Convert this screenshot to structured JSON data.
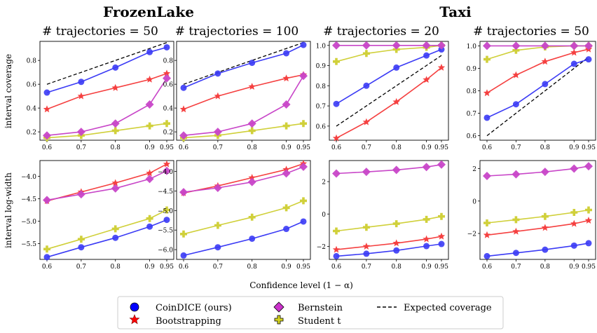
{
  "figure": {
    "group_titles": [
      "FrozenLake",
      "Taxi"
    ],
    "panel_titles": [
      "# trajectories = 50",
      "# trajectories = 100",
      "# trajectories = 20",
      "# trajectories = 50"
    ],
    "row_ylabels": [
      "interval coverage",
      "interval log-width"
    ],
    "xlabel": "Confidence level (1 − α)"
  },
  "legend": {
    "entries": [
      {
        "label": "CoinDICE (ours)",
        "marker": "circle",
        "color": "#0000ff"
      },
      {
        "label": "Bootstrapping",
        "marker": "star",
        "color": "#ff0000"
      },
      {
        "label": "Bernstein",
        "marker": "diamond",
        "color": "#cc33cc"
      },
      {
        "label": "Student t",
        "marker": "plus",
        "color": "#d4d420"
      },
      {
        "label": "Expected coverage",
        "marker": "dashed-line",
        "color": "#000000"
      }
    ]
  },
  "chart_data": [
    {
      "type": "line",
      "group": "FrozenLake",
      "title": "# trajectories = 50",
      "ylabel": "interval coverage",
      "xlabel": "",
      "x": [
        0.6,
        0.7,
        0.8,
        0.9,
        0.95
      ],
      "x_ticks": [
        "0.6",
        "0.7",
        "0.8",
        "0.9",
        "0.95"
      ],
      "ylim": [
        0.13,
        0.96
      ],
      "y_ticks": [
        0.2,
        0.4,
        0.6,
        0.8
      ],
      "y_tick_labels": [
        "0.2",
        "0.4",
        "0.6",
        "0.8"
      ],
      "series": [
        {
          "name": "CoinDICE (ours)",
          "values": [
            0.53,
            0.62,
            0.74,
            0.87,
            0.91
          ]
        },
        {
          "name": "Bootstrapping",
          "values": [
            0.39,
            0.5,
            0.57,
            0.64,
            0.69
          ]
        },
        {
          "name": "Bernstein",
          "values": [
            0.17,
            0.2,
            0.27,
            0.43,
            0.65
          ]
        },
        {
          "name": "Student t",
          "values": [
            0.15,
            0.17,
            0.21,
            0.25,
            0.27
          ]
        },
        {
          "name": "Expected coverage",
          "values": [
            0.6,
            0.7,
            0.8,
            0.9,
            0.95
          ]
        }
      ]
    },
    {
      "type": "line",
      "group": "FrozenLake",
      "title": "# trajectories = 100",
      "ylabel": "interval coverage",
      "xlabel": "",
      "x": [
        0.6,
        0.7,
        0.8,
        0.9,
        0.95
      ],
      "x_ticks": [
        "0.6",
        "0.7",
        "0.8",
        "0.9",
        "0.95"
      ],
      "ylim": [
        0.13,
        0.96
      ],
      "y_ticks": [
        0.2,
        0.4,
        0.6,
        0.8
      ],
      "y_tick_labels": [
        "0.2",
        "0.4",
        "0.6",
        "0.8"
      ],
      "series": [
        {
          "name": "CoinDICE (ours)",
          "values": [
            0.57,
            0.69,
            0.78,
            0.86,
            0.93
          ]
        },
        {
          "name": "Bootstrapping",
          "values": [
            0.39,
            0.5,
            0.58,
            0.65,
            0.68
          ]
        },
        {
          "name": "Bernstein",
          "values": [
            0.17,
            0.2,
            0.27,
            0.43,
            0.67
          ]
        },
        {
          "name": "Student t",
          "values": [
            0.15,
            0.17,
            0.21,
            0.25,
            0.27
          ]
        },
        {
          "name": "Expected coverage",
          "values": [
            0.6,
            0.7,
            0.8,
            0.9,
            0.95
          ]
        }
      ]
    },
    {
      "type": "line",
      "group": "Taxi",
      "title": "# trajectories = 20",
      "ylabel": "interval coverage",
      "xlabel": "",
      "x": [
        0.6,
        0.7,
        0.8,
        0.9,
        0.95
      ],
      "x_ticks": [
        "0.6",
        "0.7",
        "0.8",
        "0.9",
        "0.95"
      ],
      "ylim": [
        0.53,
        1.02
      ],
      "y_ticks": [
        0.6,
        0.7,
        0.8,
        0.9,
        1.0
      ],
      "y_tick_labels": [
        "0.6",
        "0.7",
        "0.8",
        "0.9",
        "1.0"
      ],
      "series": [
        {
          "name": "CoinDICE (ours)",
          "values": [
            0.71,
            0.8,
            0.89,
            0.95,
            0.98
          ]
        },
        {
          "name": "Bootstrapping",
          "values": [
            0.54,
            0.62,
            0.72,
            0.83,
            0.89
          ]
        },
        {
          "name": "Bernstein",
          "values": [
            1.0,
            1.0,
            1.0,
            1.0,
            1.0
          ]
        },
        {
          "name": "Student t",
          "values": [
            0.92,
            0.96,
            0.98,
            0.99,
            1.0
          ]
        },
        {
          "name": "Expected coverage",
          "values": [
            0.6,
            0.7,
            0.8,
            0.9,
            0.95
          ]
        }
      ]
    },
    {
      "type": "line",
      "group": "Taxi",
      "title": "# trajectories = 50",
      "ylabel": "interval coverage",
      "xlabel": "",
      "x": [
        0.6,
        0.7,
        0.8,
        0.9,
        0.95
      ],
      "x_ticks": [
        "0.6",
        "0.7",
        "0.8",
        "0.9",
        "0.95"
      ],
      "ylim": [
        0.58,
        1.02
      ],
      "y_ticks": [
        0.6,
        0.7,
        0.8,
        0.9,
        1.0
      ],
      "y_tick_labels": [
        "0.6",
        "0.7",
        "0.8",
        "0.9",
        "1.0"
      ],
      "series": [
        {
          "name": "CoinDICE (ours)",
          "values": [
            0.68,
            0.74,
            0.83,
            0.92,
            0.94
          ]
        },
        {
          "name": "Bootstrapping",
          "values": [
            0.79,
            0.87,
            0.93,
            0.97,
            0.985
          ]
        },
        {
          "name": "Bernstein",
          "values": [
            1.0,
            1.0,
            1.0,
            1.0,
            1.0
          ]
        },
        {
          "name": "Student t",
          "values": [
            0.94,
            0.98,
            0.995,
            1.0,
            1.0
          ]
        },
        {
          "name": "Expected coverage",
          "values": [
            0.6,
            0.7,
            0.8,
            0.9,
            0.95
          ]
        }
      ]
    },
    {
      "type": "line",
      "group": "FrozenLake",
      "title": "# trajectories = 50",
      "ylabel": "interval log-width",
      "xlabel": "Confidence level (1 − α)",
      "x": [
        0.6,
        0.7,
        0.8,
        0.9,
        0.95
      ],
      "x_ticks": [
        "0.6",
        "0.7",
        "0.8",
        "0.9",
        "0.95"
      ],
      "ylim": [
        -5.85,
        -3.65
      ],
      "y_ticks": [
        -5.5,
        -5.0,
        -4.5,
        -4.0
      ],
      "y_tick_labels": [
        "−5.5",
        "−5.0",
        "−4.5",
        "−4.0"
      ],
      "series": [
        {
          "name": "CoinDICE (ours)",
          "values": [
            -5.8,
            -5.58,
            -5.37,
            -5.12,
            -4.97
          ]
        },
        {
          "name": "Bootstrapping",
          "values": [
            -4.55,
            -4.35,
            -4.15,
            -3.93,
            -3.73
          ]
        },
        {
          "name": "Bernstein",
          "values": [
            -4.53,
            -4.4,
            -4.27,
            -4.06,
            -3.88
          ]
        },
        {
          "name": "Student t",
          "values": [
            -5.62,
            -5.4,
            -5.17,
            -4.94,
            -4.75
          ]
        }
      ]
    },
    {
      "type": "line",
      "group": "FrozenLake",
      "title": "# trajectories = 100",
      "ylabel": "interval log-width",
      "xlabel": "Confidence level (1 − α)",
      "x": [
        0.6,
        0.7,
        0.8,
        0.9,
        0.95
      ],
      "x_ticks": [
        "0.6",
        "0.7",
        "0.8",
        "0.9",
        "0.95"
      ],
      "ylim": [
        -6.25,
        -3.72
      ],
      "y_ticks": [
        -6.0,
        -5.5,
        -5.0,
        -4.5,
        -4.0
      ],
      "y_tick_labels": [
        "−6.0",
        "−5.5",
        "−5.0",
        "−4.5",
        "−4.0"
      ],
      "series": [
        {
          "name": "CoinDICE (ours)",
          "values": [
            -6.15,
            -5.94,
            -5.72,
            -5.47,
            -5.28
          ]
        },
        {
          "name": "Bootstrapping",
          "values": [
            -4.55,
            -4.37,
            -4.16,
            -3.95,
            -3.8
          ]
        },
        {
          "name": "Bernstein",
          "values": [
            -4.53,
            -4.42,
            -4.27,
            -4.05,
            -3.88
          ]
        },
        {
          "name": "Student t",
          "values": [
            -5.6,
            -5.38,
            -5.17,
            -4.93,
            -4.75
          ]
        }
      ]
    },
    {
      "type": "line",
      "group": "Taxi",
      "title": "# trajectories = 20",
      "ylabel": "interval log-width",
      "xlabel": "Confidence level (1 − α)",
      "x": [
        0.6,
        0.7,
        0.8,
        0.9,
        0.95
      ],
      "x_ticks": [
        "0.6",
        "0.7",
        "0.8",
        "0.9",
        "0.95"
      ],
      "ylim": [
        -2.8,
        3.3
      ],
      "y_ticks": [
        -2,
        0,
        2
      ],
      "y_tick_labels": [
        "−2",
        "0",
        "2"
      ],
      "series": [
        {
          "name": "CoinDICE (ours)",
          "values": [
            -2.6,
            -2.45,
            -2.25,
            -1.98,
            -1.85
          ]
        },
        {
          "name": "Bootstrapping",
          "values": [
            -2.2,
            -2.0,
            -1.8,
            -1.55,
            -1.38
          ]
        },
        {
          "name": "Bernstein",
          "values": [
            2.5,
            2.6,
            2.72,
            2.9,
            3.05
          ]
        },
        {
          "name": "Student t",
          "values": [
            -1.05,
            -0.82,
            -0.6,
            -0.33,
            -0.15
          ]
        }
      ]
    },
    {
      "type": "line",
      "group": "Taxi",
      "title": "# trajectories = 50",
      "ylabel": "interval log-width",
      "xlabel": "Confidence level (1 − α)",
      "x": [
        0.6,
        0.7,
        0.8,
        0.9,
        0.95
      ],
      "x_ticks": [
        "0.6",
        "0.7",
        "0.8",
        "0.9",
        "0.95"
      ],
      "ylim": [
        -3.6,
        2.5
      ],
      "y_ticks": [
        -2,
        0,
        2
      ],
      "y_tick_labels": [
        "−2",
        "0",
        "2"
      ],
      "series": [
        {
          "name": "CoinDICE (ours)",
          "values": [
            -3.4,
            -3.2,
            -3.0,
            -2.75,
            -2.6
          ]
        },
        {
          "name": "Bootstrapping",
          "values": [
            -2.1,
            -1.88,
            -1.65,
            -1.4,
            -1.2
          ]
        },
        {
          "name": "Bernstein",
          "values": [
            1.55,
            1.65,
            1.8,
            2.0,
            2.15
          ]
        },
        {
          "name": "Student t",
          "values": [
            -1.35,
            -1.15,
            -0.95,
            -0.7,
            -0.55
          ]
        }
      ]
    }
  ]
}
